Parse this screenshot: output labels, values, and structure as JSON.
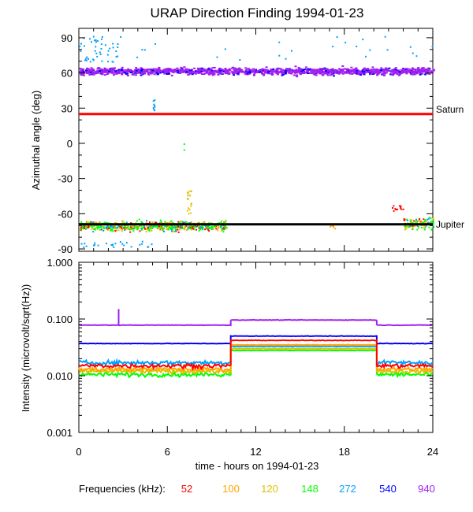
{
  "chart_data": [
    {
      "type": "scatter",
      "title": "URAP Direction Finding  1994-01-23",
      "xlabel": "",
      "ylabel": "Azimuthal angle (deg)",
      "xlim": [
        0,
        24
      ],
      "ylim": [
        -92,
        98
      ],
      "x_ticks": [
        0,
        6,
        12,
        18,
        24
      ],
      "y_ticks": [
        90,
        60,
        30,
        0,
        -30,
        -60,
        -90
      ],
      "reference_lines": [
        {
          "name": "Saturn",
          "y": 25,
          "color": "#ff0000"
        },
        {
          "name": "Jupiter",
          "y": -69,
          "color": "#000000"
        }
      ],
      "series": [
        {
          "name": "940",
          "color": "#a020f0",
          "description_band": [
            56,
            68
          ],
          "x": [
            0,
            24
          ]
        },
        {
          "name": "540",
          "color": "#0000ff",
          "description_band": [
            56,
            68
          ],
          "x": [
            0,
            24
          ]
        },
        {
          "name": "148",
          "color": "#00ff00",
          "description_band": [
            -78,
            -62
          ],
          "x": [
            0,
            6
          ]
        },
        {
          "name": "52",
          "color": "#ff0000",
          "description_band": [
            -75,
            -58
          ],
          "x": [
            3,
            10
          ]
        }
      ]
    },
    {
      "type": "line",
      "title": "",
      "xlabel": "time - hours on 1994-01-23",
      "ylabel": "Intensity (microvolt/sqrt(Hz))",
      "yscale": "log",
      "xlim": [
        0,
        24
      ],
      "ylim": [
        0.001,
        1.0
      ],
      "x_ticks": [
        0,
        6,
        12,
        18,
        24
      ],
      "y_tick_labels": [
        "1.000",
        "0.100",
        "0.010",
        "0.001"
      ],
      "series": [
        {
          "name": "940",
          "color": "#a020f0",
          "x": [
            0,
            10.3,
            10.3,
            20.2,
            20.2,
            24
          ],
          "values": [
            0.078,
            0.078,
            0.096,
            0.096,
            0.078,
            0.078
          ]
        },
        {
          "name": "540",
          "color": "#0000ff",
          "x": [
            0,
            10.3,
            10.3,
            20.2,
            20.2,
            24
          ],
          "values": [
            0.037,
            0.037,
            0.05,
            0.05,
            0.037,
            0.037
          ]
        },
        {
          "name": "272",
          "color": "#00a0ff",
          "x": [
            0,
            10.3,
            10.3,
            20.2,
            20.2,
            24
          ],
          "values": [
            0.017,
            0.017,
            0.033,
            0.033,
            0.017,
            0.017
          ]
        },
        {
          "name": "148",
          "color": "#00ff00",
          "x": [
            0,
            10.3,
            10.3,
            20.2,
            20.2,
            24
          ],
          "values": [
            0.0105,
            0.0105,
            0.028,
            0.028,
            0.0105,
            0.0105
          ]
        },
        {
          "name": "120",
          "color": "#e0c000",
          "x": [
            0,
            10.3,
            10.3,
            20.2,
            20.2,
            24
          ],
          "values": [
            0.012,
            0.012,
            0.03,
            0.03,
            0.012,
            0.012
          ]
        },
        {
          "name": "100",
          "color": "#ffa500",
          "x": [
            0,
            10.3,
            10.3,
            20.2,
            20.2,
            24
          ],
          "values": [
            0.013,
            0.013,
            0.035,
            0.035,
            0.013,
            0.013
          ]
        },
        {
          "name": "52",
          "color": "#ff0000",
          "x": [
            0,
            10.3,
            10.3,
            20.2,
            20.2,
            24
          ],
          "values": [
            0.015,
            0.015,
            0.042,
            0.042,
            0.015,
            0.015
          ]
        }
      ]
    }
  ],
  "legend": {
    "label": "Frequencies (kHz):",
    "items": [
      {
        "text": "52",
        "color": "#ff0000"
      },
      {
        "text": "100",
        "color": "#ffa500"
      },
      {
        "text": "120",
        "color": "#e0c000"
      },
      {
        "text": "148",
        "color": "#00ff00"
      },
      {
        "text": "272",
        "color": "#00a0ff"
      },
      {
        "text": "540",
        "color": "#0000ff"
      },
      {
        "text": "940",
        "color": "#a020f0"
      }
    ]
  }
}
